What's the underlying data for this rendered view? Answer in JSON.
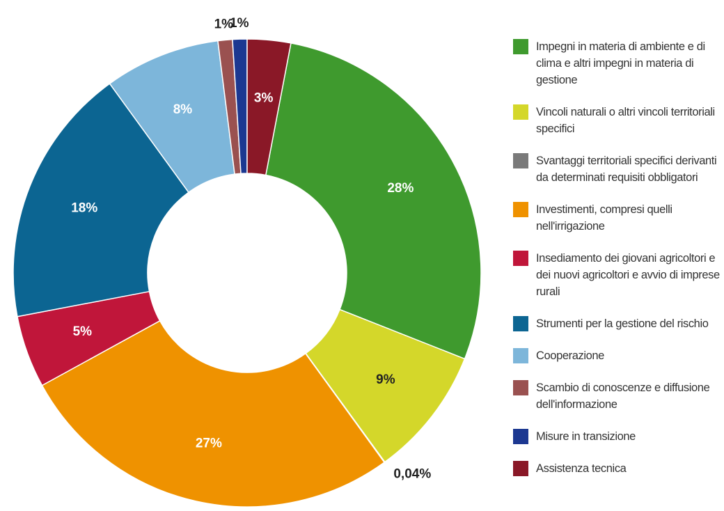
{
  "chart_data": {
    "type": "donut",
    "categories": [
      "Impegni in materia di ambiente e di clima e altri impegni in materia di gestione",
      "Vincoli naturali o altri vincoli territoriali specifici",
      "Svantaggi territoriali specifici derivanti da determinati requisiti obbligatori",
      "Investimenti, compresi quelli nell'irrigazione",
      "Insediamento dei giovani agricoltori e dei nuovi agricoltori e avvio di imprese rurali",
      "Strumenti per la gestione del rischio",
      "Cooperazione",
      "Scambio di conoscenze e diffusione dell'informazione",
      "Misure in transizione",
      "Assistenza tecnica"
    ],
    "values": [
      28,
      9,
      0.04,
      27,
      5,
      18,
      8,
      1,
      1,
      3
    ],
    "value_labels": [
      "28%",
      "9%",
      "0,04%",
      "27%",
      "5%",
      "18%",
      "8%",
      "1%",
      "1%",
      "3%"
    ],
    "colors": [
      "#3f9a2e",
      "#d4d72a",
      "#7a7a7a",
      "#ef9200",
      "#c0163a",
      "#0c6592",
      "#7db6da",
      "#9a5150",
      "#1c3891",
      "#8a1827"
    ],
    "label_colors": [
      "#ffffff",
      "#222222",
      "#222222",
      "#ffffff",
      "#ffffff",
      "#ffffff",
      "#ffffff",
      "#222222",
      "#222222",
      "#ffffff"
    ],
    "legend": "right"
  }
}
